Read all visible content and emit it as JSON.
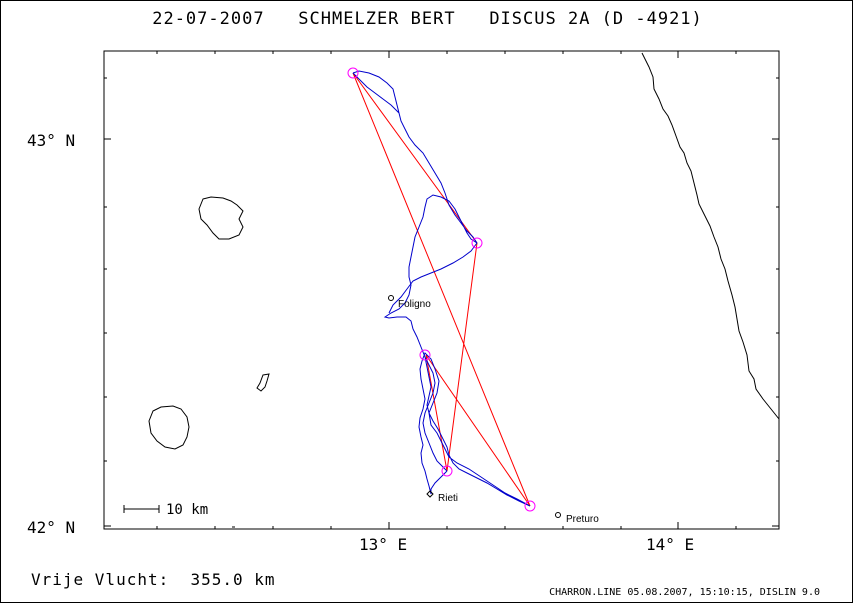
{
  "header": {
    "date": "22-07-2007",
    "pilot": "SCHMELZER BERT",
    "glider": "DISCUS 2A (D -4921)"
  },
  "axes": {
    "lat_labels": [
      "43° N",
      "42° N"
    ],
    "lon_labels": [
      "13° E",
      "14° E"
    ]
  },
  "places": [
    {
      "name": "Foligno"
    },
    {
      "name": "Rieti"
    },
    {
      "name": "Preturo"
    }
  ],
  "scale_label": "10 km",
  "footer": {
    "distance_label": "Vrije Vlucht:",
    "distance_value": "355.0 km",
    "credit": "CHARRON.LINE 05.08.2007, 15:10:15, DISLIN 9.0"
  },
  "colors": {
    "track": "#0000cc",
    "task": "#ff0000",
    "turnpoint": "#ff00ff",
    "coast": "#000000"
  }
}
